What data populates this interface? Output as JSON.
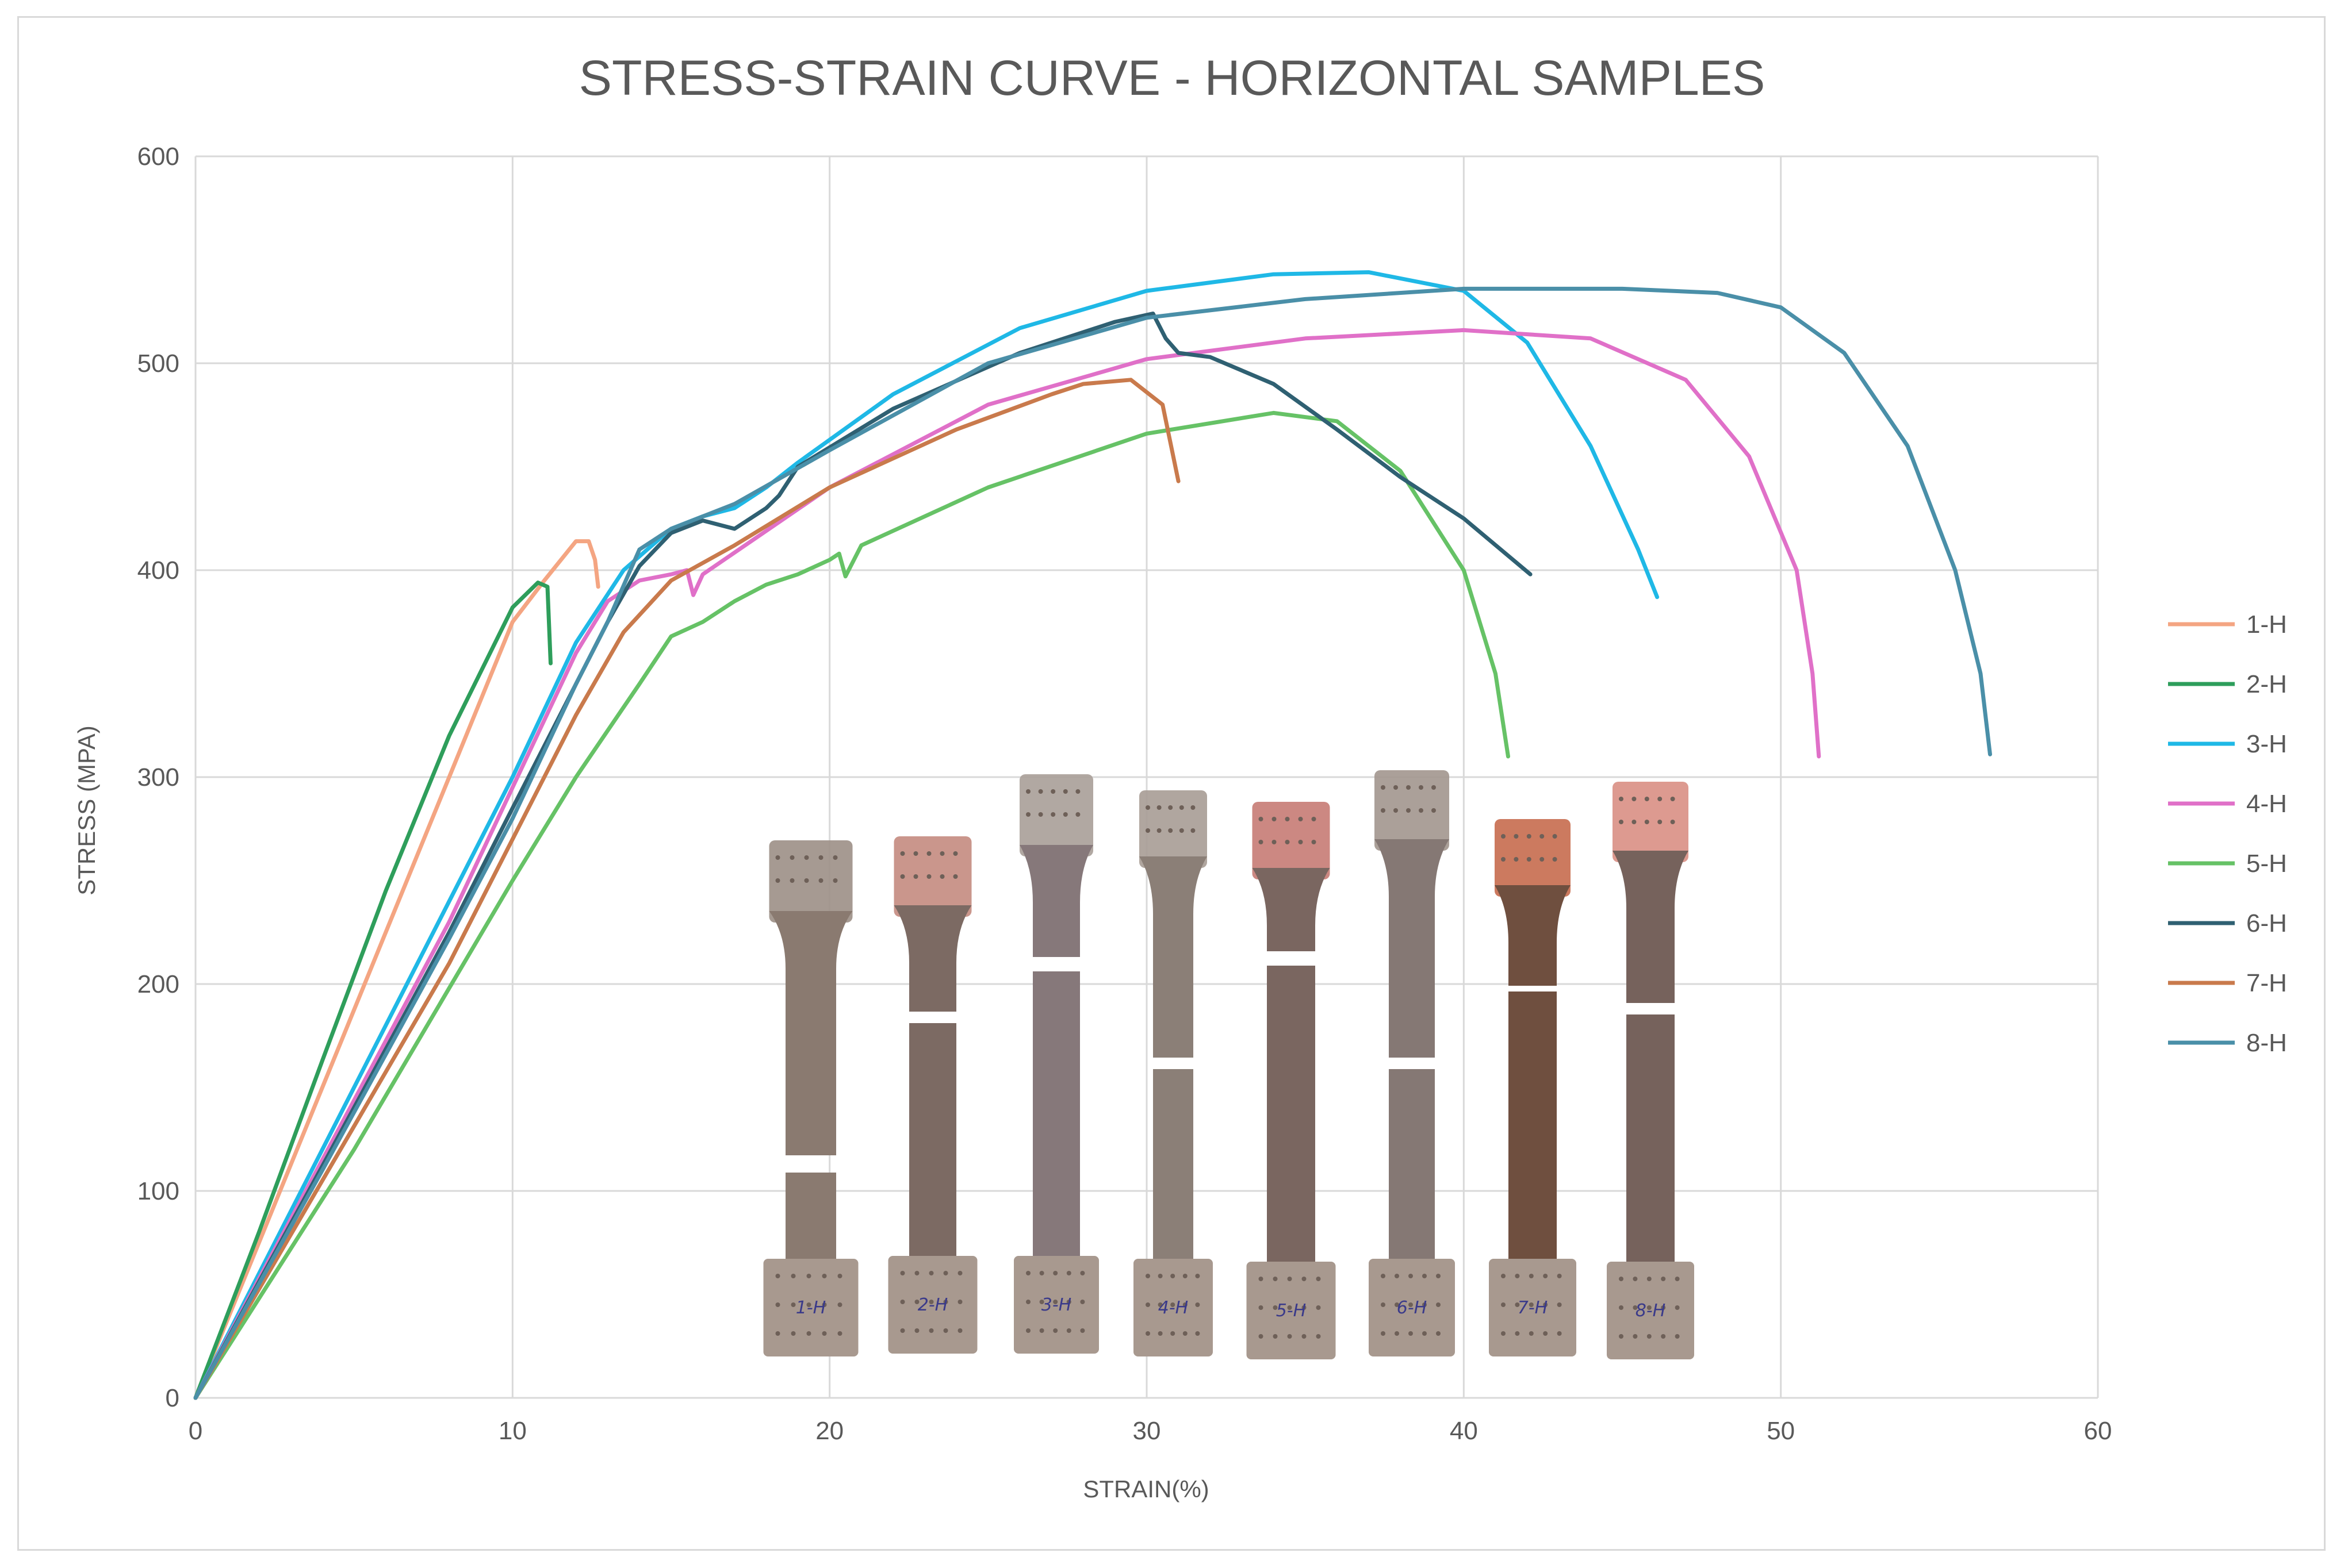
{
  "chart_data": {
    "type": "line",
    "title": "STRESS-STRAIN CURVE - HORIZONTAL SAMPLES",
    "xlabel": "STRAIN(%)",
    "ylabel": "STRESS (MPA)",
    "xlim": [
      0,
      60
    ],
    "ylim": [
      0,
      600
    ],
    "xticks": [
      "0",
      "10",
      "20",
      "30",
      "40",
      "50",
      "60"
    ],
    "yticks": [
      "0",
      "100",
      "200",
      "300",
      "400",
      "500",
      "600"
    ],
    "grid": true,
    "legend_position": "right",
    "series": [
      {
        "name": "1-H",
        "color": "#f4a582",
        "points": [
          [
            0,
            0
          ],
          [
            2,
            75
          ],
          [
            4,
            150
          ],
          [
            6,
            225
          ],
          [
            8,
            300
          ],
          [
            10,
            375
          ],
          [
            11,
            395
          ],
          [
            12,
            414
          ],
          [
            12.4,
            414
          ],
          [
            12.6,
            405
          ],
          [
            12.7,
            392
          ]
        ]
      },
      {
        "name": "2-H",
        "color": "#2e9e5b",
        "points": [
          [
            0,
            0
          ],
          [
            2,
            80
          ],
          [
            4,
            163
          ],
          [
            6,
            245
          ],
          [
            8,
            320
          ],
          [
            10,
            382
          ],
          [
            10.8,
            394
          ],
          [
            11.1,
            392
          ],
          [
            11.2,
            355
          ]
        ]
      },
      {
        "name": "3-H",
        "color": "#1fb8e6",
        "points": [
          [
            0,
            0
          ],
          [
            4,
            120
          ],
          [
            8,
            240
          ],
          [
            10,
            300
          ],
          [
            12,
            365
          ],
          [
            13.5,
            400
          ],
          [
            15,
            420
          ],
          [
            16,
            426
          ],
          [
            17,
            430
          ],
          [
            18,
            440
          ],
          [
            19,
            452
          ],
          [
            22,
            485
          ],
          [
            26,
            517
          ],
          [
            30,
            535
          ],
          [
            34,
            543
          ],
          [
            37,
            544
          ],
          [
            40,
            535
          ],
          [
            42,
            510
          ],
          [
            44,
            460
          ],
          [
            45.5,
            410
          ],
          [
            46.1,
            387
          ]
        ]
      },
      {
        "name": "4-H",
        "color": "#e070c8",
        "points": [
          [
            0,
            0
          ],
          [
            4,
            115
          ],
          [
            8,
            230
          ],
          [
            10,
            295
          ],
          [
            12,
            360
          ],
          [
            13,
            385
          ],
          [
            14,
            395
          ],
          [
            15,
            398
          ],
          [
            15.5,
            400
          ],
          [
            15.7,
            388
          ],
          [
            16,
            398
          ],
          [
            20,
            440
          ],
          [
            25,
            480
          ],
          [
            30,
            502
          ],
          [
            35,
            512
          ],
          [
            40,
            516
          ],
          [
            44,
            512
          ],
          [
            47,
            492
          ],
          [
            49,
            455
          ],
          [
            50.5,
            400
          ],
          [
            51,
            350
          ],
          [
            51.2,
            310
          ]
        ]
      },
      {
        "name": "5-H",
        "color": "#66c266",
        "points": [
          [
            0,
            0
          ],
          [
            5,
            120
          ],
          [
            10,
            250
          ],
          [
            12,
            300
          ],
          [
            14,
            345
          ],
          [
            15,
            368
          ],
          [
            16,
            375
          ],
          [
            17,
            385
          ],
          [
            18,
            393
          ],
          [
            19,
            398
          ],
          [
            20,
            405
          ],
          [
            20.3,
            408
          ],
          [
            20.5,
            397
          ],
          [
            21,
            412
          ],
          [
            25,
            440
          ],
          [
            30,
            466
          ],
          [
            34,
            476
          ],
          [
            36,
            472
          ],
          [
            38,
            448
          ],
          [
            40,
            400
          ],
          [
            41,
            350
          ],
          [
            41.4,
            310
          ]
        ]
      },
      {
        "name": "6-H",
        "color": "#2f6072",
        "points": [
          [
            0,
            0
          ],
          [
            4,
            112
          ],
          [
            8,
            225
          ],
          [
            10,
            285
          ],
          [
            12,
            345
          ],
          [
            13,
            375
          ],
          [
            14,
            402
          ],
          [
            15,
            418
          ],
          [
            16,
            424
          ],
          [
            17,
            420
          ],
          [
            18,
            430
          ],
          [
            18.4,
            436
          ],
          [
            19,
            450
          ],
          [
            22,
            478
          ],
          [
            26,
            505
          ],
          [
            29,
            520
          ],
          [
            30.2,
            524
          ],
          [
            30.6,
            512
          ],
          [
            31,
            505
          ],
          [
            32,
            503
          ],
          [
            34,
            490
          ],
          [
            36,
            468
          ],
          [
            38,
            445
          ],
          [
            40,
            425
          ],
          [
            42.1,
            398
          ]
        ]
      },
      {
        "name": "7-H",
        "color": "#c97a4c",
        "points": [
          [
            0,
            0
          ],
          [
            4,
            105
          ],
          [
            8,
            210
          ],
          [
            10,
            270
          ],
          [
            12,
            330
          ],
          [
            13.5,
            370
          ],
          [
            15,
            395
          ],
          [
            17,
            412
          ],
          [
            20,
            440
          ],
          [
            24,
            468
          ],
          [
            27,
            485
          ],
          [
            28,
            490
          ],
          [
            29.5,
            492
          ],
          [
            30.5,
            480
          ],
          [
            31,
            443
          ]
        ]
      },
      {
        "name": "8-H",
        "color": "#4a8fa8",
        "points": [
          [
            0,
            0
          ],
          [
            4,
            110
          ],
          [
            8,
            222
          ],
          [
            10,
            280
          ],
          [
            12,
            345
          ],
          [
            13,
            375
          ],
          [
            14,
            410
          ],
          [
            15,
            420
          ],
          [
            17,
            432
          ],
          [
            20,
            458
          ],
          [
            25,
            500
          ],
          [
            30,
            522
          ],
          [
            35,
            531
          ],
          [
            40,
            536
          ],
          [
            45,
            536
          ],
          [
            48,
            534
          ],
          [
            50,
            527
          ],
          [
            52,
            505
          ],
          [
            54,
            460
          ],
          [
            55.5,
            400
          ],
          [
            56.3,
            350
          ],
          [
            56.6,
            311
          ]
        ]
      }
    ]
  },
  "specimen_labels": [
    "1-H",
    "2-H",
    "3-H",
    "4-H",
    "5-H",
    "6-H",
    "7-H",
    "8-H"
  ]
}
